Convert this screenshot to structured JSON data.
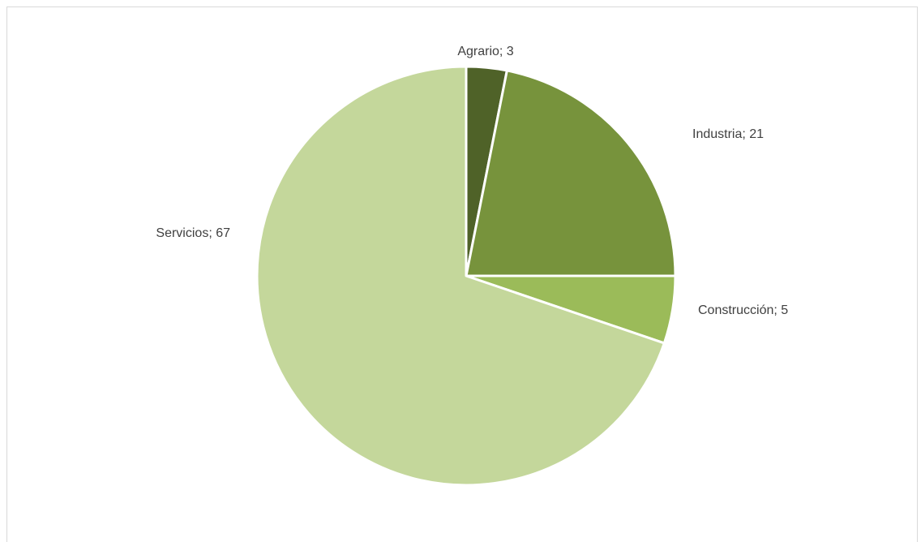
{
  "chart_data": {
    "type": "pie",
    "title": "",
    "categories": [
      "Agrario",
      "Industria",
      "Construcción",
      "Servicios"
    ],
    "values": [
      3,
      21,
      5,
      67
    ],
    "labels": [
      "Agrario; 3",
      "Industria; 21",
      "Construcción; 5",
      "Servicios; 67"
    ],
    "colors": [
      "#4f6228",
      "#77933c",
      "#9bbb59",
      "#c4d79b"
    ],
    "legend": "none",
    "start_angle": "12 o'clock, clockwise"
  }
}
